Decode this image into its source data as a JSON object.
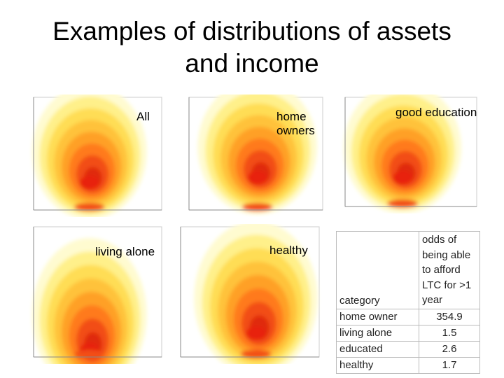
{
  "title": "Examples of distributions of assets and income",
  "panels": [
    {
      "label": "All"
    },
    {
      "label": "home owners"
    },
    {
      "label": "good education"
    },
    {
      "label": "living alone"
    },
    {
      "label": "healthy"
    }
  ],
  "table": {
    "header": [
      "category",
      "odds of being able to afford LTC for >1 year"
    ],
    "rows": [
      [
        "home owner",
        354.9
      ],
      [
        "living alone",
        1.5
      ],
      [
        "educated",
        2.6
      ],
      [
        "healthy",
        1.7
      ]
    ]
  }
}
